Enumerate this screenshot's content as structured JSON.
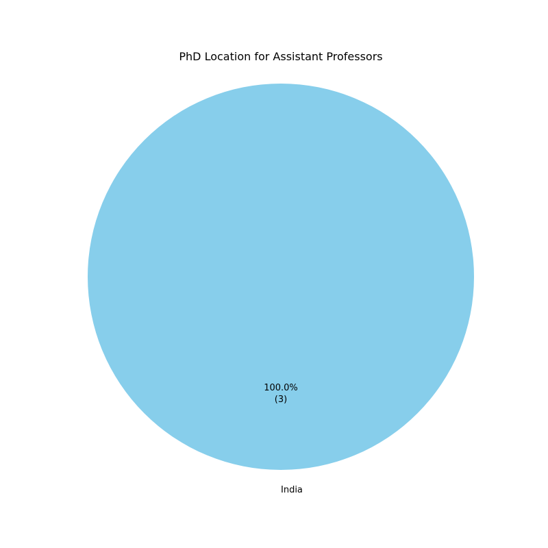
{
  "chart_data": {
    "type": "pie",
    "title": "PhD Location for Assistant Professors",
    "categories": [
      "India"
    ],
    "values": [
      3
    ],
    "percent_labels": [
      "100.0%"
    ],
    "count_labels": [
      "(3)"
    ],
    "colors": [
      "#87CEEB"
    ],
    "legend": "none"
  }
}
